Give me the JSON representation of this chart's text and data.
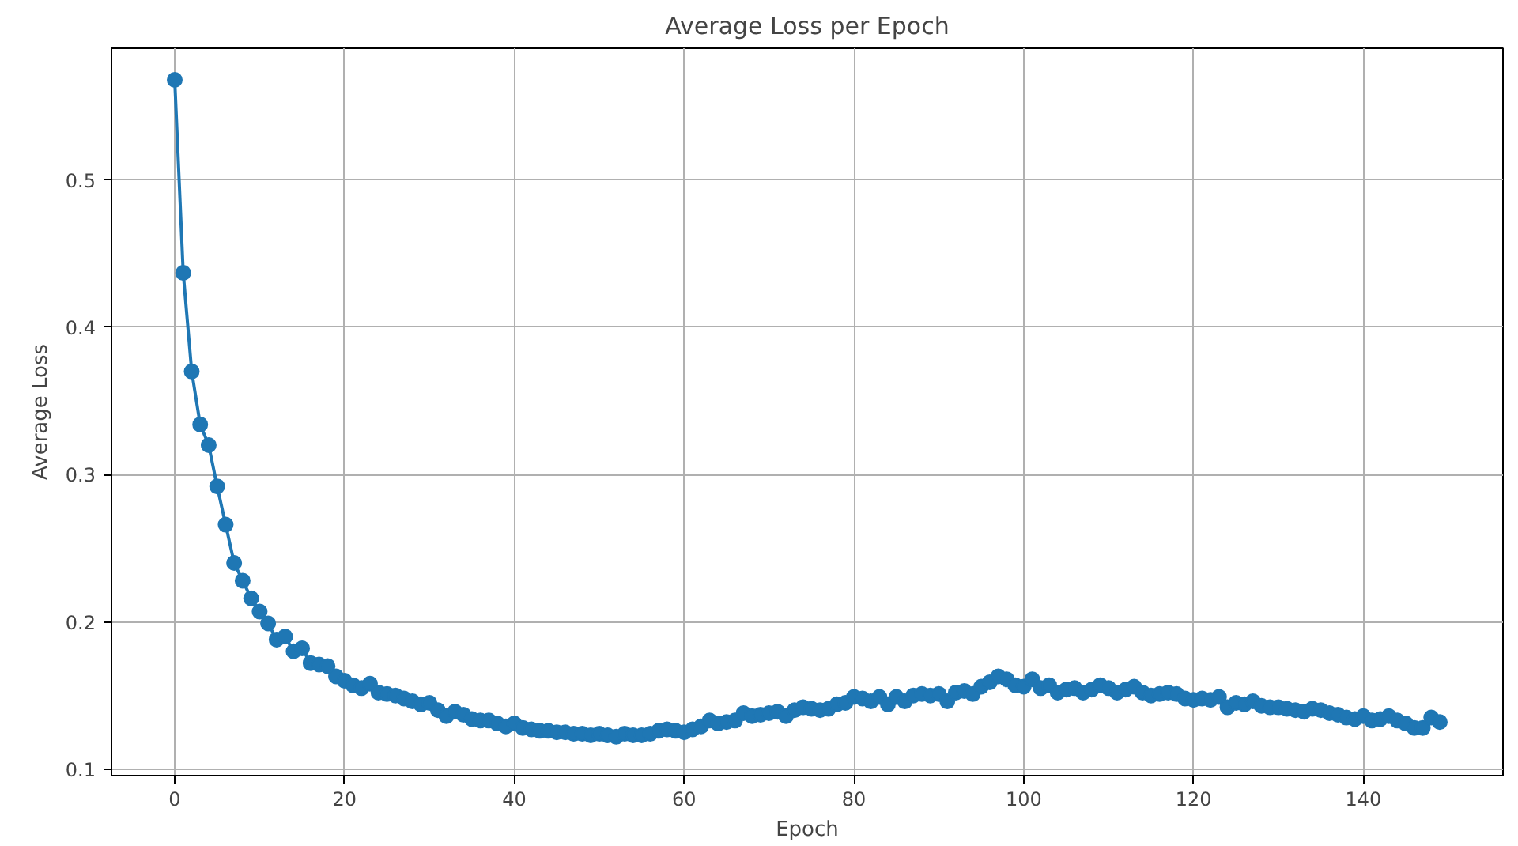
{
  "chart_data": {
    "type": "line",
    "title": "Average Loss per Epoch",
    "xlabel": "Epoch",
    "ylabel": "Average Loss",
    "x": [
      0,
      1,
      2,
      3,
      4,
      5,
      6,
      7,
      8,
      9,
      10,
      11,
      12,
      13,
      14,
      15,
      16,
      17,
      18,
      19,
      20,
      21,
      22,
      23,
      24,
      25,
      26,
      27,
      28,
      29,
      30,
      31,
      32,
      33,
      34,
      35,
      36,
      37,
      38,
      39,
      40,
      41,
      42,
      43,
      44,
      45,
      46,
      47,
      48,
      49,
      50,
      51,
      52,
      53,
      54,
      55,
      56,
      57,
      58,
      59,
      60,
      61,
      62,
      63,
      64,
      65,
      66,
      67,
      68,
      69,
      70,
      71,
      72,
      73,
      74,
      75,
      76,
      77,
      78,
      79,
      80,
      81,
      82,
      83,
      84,
      85,
      86,
      87,
      88,
      89,
      90,
      91,
      92,
      93,
      94,
      95,
      96,
      97,
      98,
      99,
      100,
      101,
      102,
      103,
      104,
      105,
      106,
      107,
      108,
      109,
      110,
      111,
      112,
      113,
      114,
      115,
      116,
      117,
      118,
      119,
      120,
      121,
      122,
      123,
      124,
      125,
      126,
      127,
      128,
      129,
      130,
      131,
      132,
      133,
      134,
      135,
      136,
      137,
      138,
      139,
      140,
      141,
      142,
      143,
      144,
      145,
      146,
      147,
      148,
      149
    ],
    "series": [
      {
        "color": "#1f77b4",
        "values": [
          0.568,
          0.437,
          0.37,
          0.334,
          0.32,
          0.292,
          0.266,
          0.24,
          0.228,
          0.216,
          0.207,
          0.199,
          0.188,
          0.19,
          0.18,
          0.182,
          0.172,
          0.171,
          0.17,
          0.163,
          0.16,
          0.157,
          0.155,
          0.158,
          0.152,
          0.151,
          0.15,
          0.148,
          0.146,
          0.144,
          0.145,
          0.14,
          0.136,
          0.139,
          0.137,
          0.134,
          0.133,
          0.133,
          0.131,
          0.129,
          0.131,
          0.128,
          0.127,
          0.126,
          0.126,
          0.125,
          0.125,
          0.124,
          0.124,
          0.123,
          0.124,
          0.123,
          0.122,
          0.124,
          0.123,
          0.123,
          0.124,
          0.126,
          0.127,
          0.126,
          0.125,
          0.127,
          0.129,
          0.133,
          0.131,
          0.132,
          0.133,
          0.138,
          0.136,
          0.137,
          0.138,
          0.139,
          0.136,
          0.14,
          0.142,
          0.141,
          0.14,
          0.141,
          0.144,
          0.145,
          0.149,
          0.148,
          0.146,
          0.149,
          0.144,
          0.149,
          0.146,
          0.15,
          0.151,
          0.15,
          0.151,
          0.146,
          0.152,
          0.153,
          0.151,
          0.156,
          0.159,
          0.163,
          0.161,
          0.157,
          0.156,
          0.161,
          0.155,
          0.157,
          0.152,
          0.154,
          0.155,
          0.152,
          0.154,
          0.157,
          0.155,
          0.152,
          0.154,
          0.156,
          0.152,
          0.15,
          0.151,
          0.152,
          0.151,
          0.148,
          0.147,
          0.148,
          0.147,
          0.149,
          0.142,
          0.145,
          0.144,
          0.146,
          0.143,
          0.142,
          0.142,
          0.141,
          0.14,
          0.139,
          0.141,
          0.14,
          0.138,
          0.137,
          0.135,
          0.134,
          0.136,
          0.133,
          0.134,
          0.136,
          0.133,
          0.131,
          0.128,
          0.128,
          0.135,
          0.132
        ]
      }
    ],
    "xlim": [
      -7.45,
      156.45
    ],
    "ylim": [
      0.0956,
      0.5895
    ],
    "xticks": [
      0,
      20,
      40,
      60,
      80,
      100,
      120,
      140
    ],
    "yticks": [
      {
        "value": 0.1,
        "label": "0.1"
      },
      {
        "value": 0.2,
        "label": "0.2"
      },
      {
        "value": 0.3,
        "label": "0.3"
      },
      {
        "value": 0.4,
        "label": "0.4"
      },
      {
        "value": 0.5,
        "label": "0.5"
      }
    ],
    "grid": true,
    "marker": "circle",
    "line_style": "solid"
  }
}
